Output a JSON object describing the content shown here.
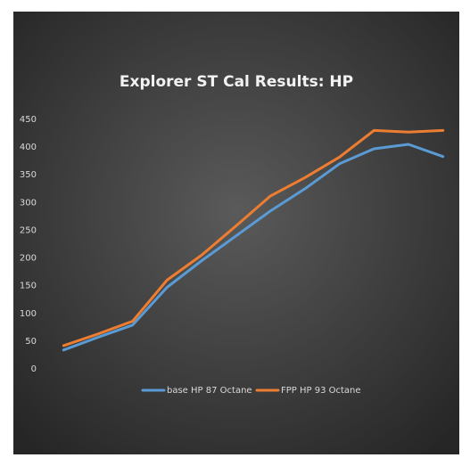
{
  "chart_data": {
    "type": "line",
    "title": "Explorer ST Cal Results: HP",
    "categories": [
      null,
      null,
      null,
      null,
      null,
      null,
      null,
      null,
      null,
      null,
      null,
      null
    ],
    "series": [
      {
        "name": "base HP 87 Octane",
        "color": "#5b9bd5",
        "values": [
          34,
          57,
          79,
          147,
          195,
          240,
          285,
          325,
          370,
          397,
          405,
          383
        ]
      },
      {
        "name": "FPP HP 93 Octane",
        "color": "#ed7d31",
        "values": [
          42,
          63,
          86,
          160,
          205,
          258,
          312,
          345,
          382,
          430,
          427,
          430
        ]
      }
    ],
    "ylim": [
      0,
      450
    ],
    "yticks": [
      0,
      50,
      100,
      150,
      200,
      250,
      300,
      350,
      400,
      450
    ],
    "grid": false,
    "legend": "bottom"
  }
}
